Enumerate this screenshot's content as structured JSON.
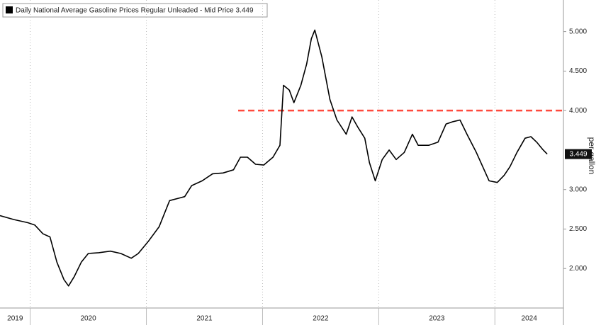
{
  "chart_data": {
    "type": "line",
    "y_label": "per gallon",
    "series": [
      {
        "name": "Daily National Average Gasoline Prices Regular Unleaded - Mid Price 3.449",
        "color": "#000000",
        "x": [
          2019.74,
          2019.86,
          2019.98,
          2020.04,
          2020.11,
          2020.17,
          2020.23,
          2020.29,
          2020.33,
          2020.38,
          2020.44,
          2020.5,
          2020.59,
          2020.69,
          2020.78,
          2020.87,
          2020.93,
          2021.02,
          2021.11,
          2021.2,
          2021.33,
          2021.39,
          2021.48,
          2021.57,
          2021.66,
          2021.75,
          2021.81,
          2021.87,
          2021.94,
          2022.01,
          2022.09,
          2022.15,
          2022.18,
          2022.23,
          2022.27,
          2022.33,
          2022.38,
          2022.42,
          2022.45,
          2022.51,
          2022.58,
          2022.64,
          2022.72,
          2022.77,
          2022.82,
          2022.88,
          2022.92,
          2022.97,
          2023.03,
          2023.09,
          2023.15,
          2023.22,
          2023.29,
          2023.34,
          2023.43,
          2023.51,
          2023.58,
          2023.64,
          2023.7,
          2023.76,
          2023.84,
          2023.95,
          2024.02,
          2024.08,
          2024.13,
          2024.19,
          2024.26,
          2024.31,
          2024.36,
          2024.41,
          2024.45
        ],
        "values": [
          2.67,
          2.62,
          2.58,
          2.55,
          2.44,
          2.4,
          2.08,
          1.86,
          1.78,
          1.9,
          2.08,
          2.19,
          2.2,
          2.22,
          2.19,
          2.13,
          2.19,
          2.35,
          2.53,
          2.86,
          2.91,
          3.05,
          3.11,
          3.2,
          3.21,
          3.25,
          3.41,
          3.41,
          3.32,
          3.31,
          3.41,
          3.56,
          4.32,
          4.26,
          4.1,
          4.32,
          4.59,
          4.91,
          5.02,
          4.68,
          4.14,
          3.88,
          3.7,
          3.92,
          3.79,
          3.65,
          3.34,
          3.11,
          3.38,
          3.5,
          3.38,
          3.47,
          3.7,
          3.56,
          3.56,
          3.6,
          3.83,
          3.86,
          3.88,
          3.7,
          3.47,
          3.11,
          3.09,
          3.18,
          3.29,
          3.47,
          3.65,
          3.67,
          3.6,
          3.51,
          3.449
        ]
      }
    ],
    "reference_line": {
      "value": 4,
      "x_start": 2021.79,
      "color": "#ff4a3d"
    },
    "xlim": [
      2019.74,
      2024.59
    ],
    "xticks": [
      2019,
      2020,
      2021,
      2022,
      2023,
      2024
    ],
    "ylim": [
      1.5,
      5.4
    ],
    "yticks": [
      {
        "value": 2,
        "label": "2.000"
      },
      {
        "value": 2.5,
        "label": "2.500"
      },
      {
        "value": 3,
        "label": "3.000"
      },
      {
        "value": 4,
        "label": "4.000"
      },
      {
        "value": 4.5,
        "label": "4.500"
      },
      {
        "value": 5,
        "label": "5.000"
      }
    ],
    "grid": true
  }
}
